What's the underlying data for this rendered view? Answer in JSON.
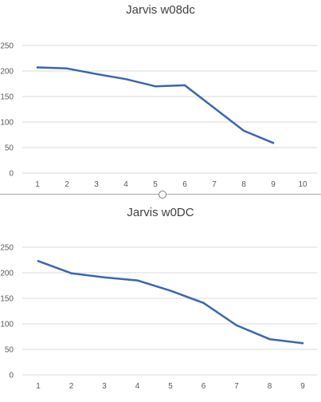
{
  "accent_color": "#3B66AF",
  "grid_color": "#D9D9D9",
  "chart_data": [
    {
      "type": "line",
      "title": "Jarvis w08dc",
      "categories": [
        "1",
        "2",
        "3",
        "4",
        "5",
        "6",
        "7",
        "8",
        "9",
        "10"
      ],
      "values": [
        207,
        205,
        194,
        184,
        170,
        172,
        null,
        83,
        59,
        null
      ],
      "y_ticks": [
        0,
        50,
        100,
        150,
        200,
        250
      ],
      "ylim": [
        0,
        250
      ],
      "grid": true,
      "legend": "none"
    },
    {
      "type": "line",
      "title": "Jarvis w0DC",
      "categories": [
        "1",
        "2",
        "3",
        "4",
        "5",
        "6",
        "7",
        "8",
        "9"
      ],
      "values": [
        223,
        199,
        191,
        185,
        165,
        141,
        97,
        70,
        62
      ],
      "y_ticks": [
        0,
        50,
        100,
        150,
        200,
        250
      ],
      "ylim": [
        0,
        250
      ],
      "grid": true,
      "legend": "none"
    }
  ]
}
